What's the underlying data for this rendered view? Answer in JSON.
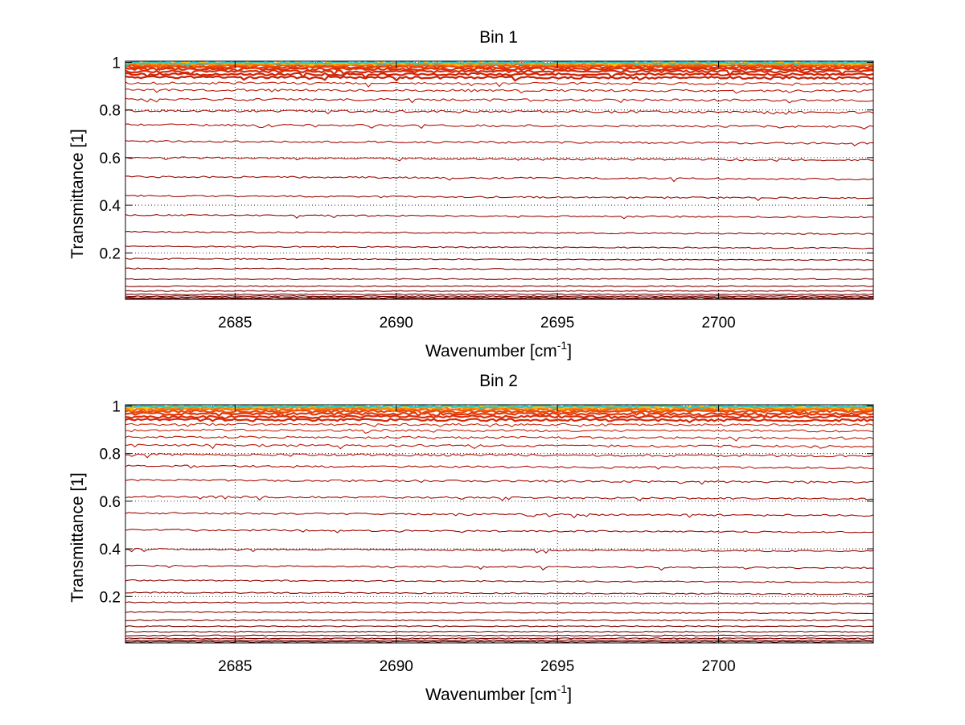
{
  "chart_data": [
    {
      "type": "line",
      "title": "Bin 1",
      "xlabel": "Wavenumber [cm",
      "xlabel_sup": "-1",
      "xlabel_close": "]",
      "ylabel": "Transmittance [1]",
      "xlim": [
        2681.6,
        2704.8
      ],
      "ylim": [
        0.005,
        1.005
      ],
      "grid": true,
      "xticks": [
        2685,
        2690,
        2695,
        2700
      ],
      "xtick_labels": [
        "2685",
        "2690",
        "2695",
        "2700"
      ],
      "yticks": [
        0.2,
        0.4,
        0.6,
        0.8,
        1
      ],
      "ytick_labels": [
        "0.2",
        "0.4",
        "0.6",
        "0.8",
        "1"
      ],
      "series_levels": [
        0.008,
        0.012,
        0.018,
        0.026,
        0.04,
        0.06,
        0.09,
        0.13,
        0.17,
        0.22,
        0.28,
        0.35,
        0.43,
        0.51,
        0.59,
        0.66,
        0.73,
        0.79,
        0.84,
        0.88,
        0.91,
        0.935,
        0.95,
        0.962,
        0.972,
        0.98,
        0.986,
        0.99,
        0.993,
        0.995,
        0.997,
        0.998
      ]
    },
    {
      "type": "line",
      "title": "Bin 2",
      "xlabel": "Wavenumber [cm",
      "xlabel_sup": "-1",
      "xlabel_close": "]",
      "ylabel": "Transmittance [1]",
      "xlim": [
        2681.6,
        2704.8
      ],
      "ylim": [
        0.005,
        1.005
      ],
      "grid": true,
      "xticks": [
        2685,
        2690,
        2695,
        2700
      ],
      "xtick_labels": [
        "2685",
        "2690",
        "2695",
        "2700"
      ],
      "yticks": [
        0.2,
        0.4,
        0.6,
        0.8,
        1
      ],
      "ytick_labels": [
        "0.2",
        "0.4",
        "0.6",
        "0.8",
        "1"
      ],
      "series_levels": [
        0.01,
        0.016,
        0.024,
        0.036,
        0.052,
        0.075,
        0.1,
        0.13,
        0.17,
        0.21,
        0.26,
        0.32,
        0.39,
        0.47,
        0.54,
        0.61,
        0.68,
        0.74,
        0.79,
        0.83,
        0.865,
        0.895,
        0.92,
        0.94,
        0.955,
        0.967,
        0.977,
        0.985,
        0.99,
        0.994,
        0.997,
        0.998
      ]
    }
  ]
}
